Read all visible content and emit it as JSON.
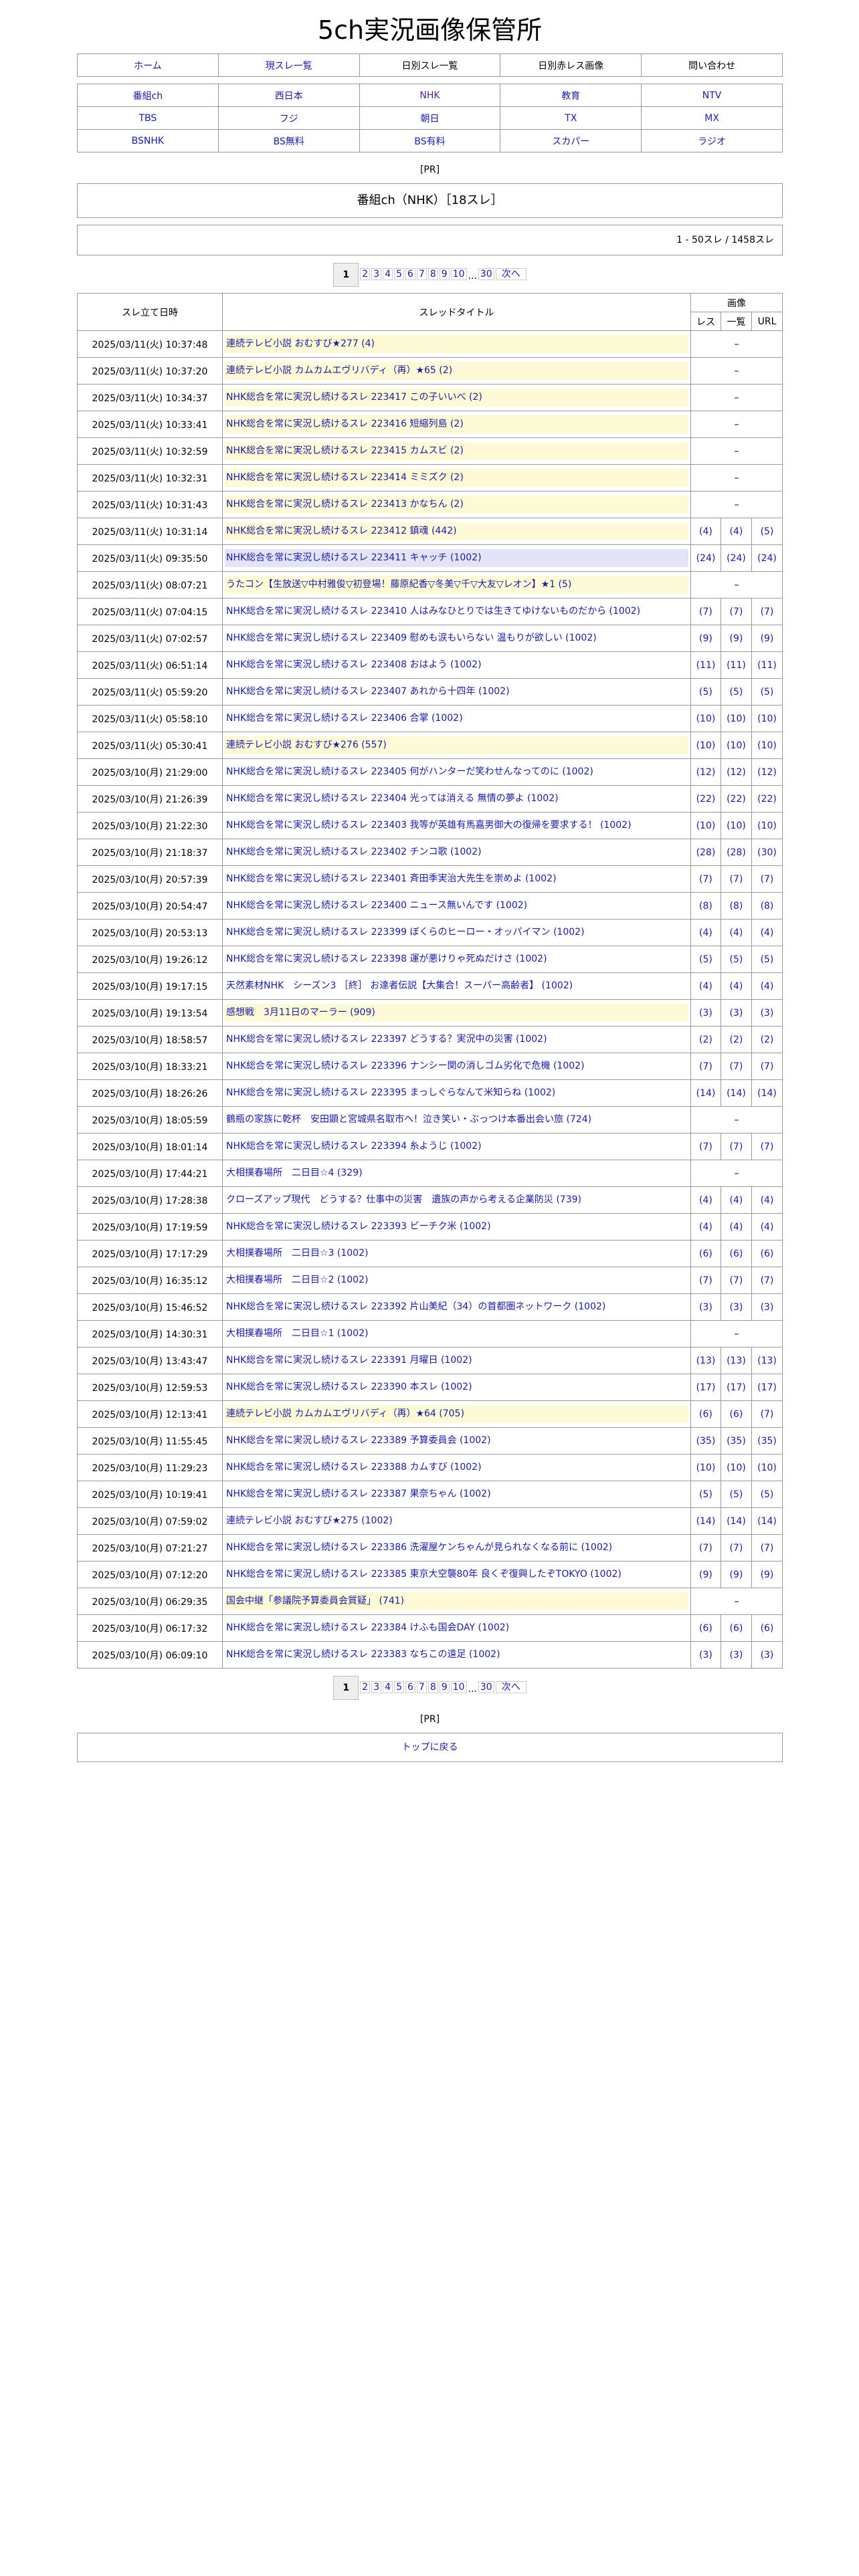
{
  "site_title": "5ch実況画像保管所",
  "nav": [
    {
      "label": "ホーム",
      "link": true
    },
    {
      "label": "現スレ一覧",
      "link": true
    },
    {
      "label": "日別スレ一覧",
      "link": false
    },
    {
      "label": "日別赤レス画像",
      "link": false
    },
    {
      "label": "問い合わせ",
      "link": false
    }
  ],
  "channels": [
    "番組ch",
    "西日本",
    "NHK",
    "教育",
    "NTV",
    "TBS",
    "フジ",
    "朝日",
    "TX",
    "MX",
    "BSNHK",
    "BS無料",
    "BS有料",
    "スカパー",
    "ラジオ"
  ],
  "active_channel": "NHK",
  "pr_label": "[PR]",
  "heading": "番組ch（NHK）［18スレ］",
  "count_text": "1 - 50スレ / 1458スレ",
  "pagination": {
    "current": "1",
    "pages": [
      "1",
      "2",
      "3",
      "4",
      "5",
      "6",
      "7",
      "8",
      "9",
      "10"
    ],
    "ellipsis": "...",
    "last": "30",
    "next": "次へ"
  },
  "table": {
    "headers": {
      "date": "スレ立て日時",
      "title": "スレッドタイトル",
      "images": "画像",
      "res": "レス",
      "list": "一覧",
      "url": "URL"
    },
    "no_images": "–",
    "rows": [
      [
        "2025/03/11(火) 10:37:48",
        "連続テレビ小説 おむすび★277 (4)",
        "yellow",
        null,
        null,
        null
      ],
      [
        "2025/03/11(火) 10:37:20",
        "連続テレビ小説 カムカムエヴリバディ（再）★65 (2)",
        "yellow",
        null,
        null,
        null
      ],
      [
        "2025/03/11(火) 10:34:37",
        "NHK総合を常に実況し続けるスレ 223417 この子いいべ (2)",
        "yellow",
        null,
        null,
        null
      ],
      [
        "2025/03/11(火) 10:33:41",
        "NHK総合を常に実況し続けるスレ 223416 短縮列島 (2)",
        "yellow",
        null,
        null,
        null
      ],
      [
        "2025/03/11(火) 10:32:59",
        "NHK総合を常に実況し続けるスレ 223415 カムスビ (2)",
        "yellow",
        null,
        null,
        null
      ],
      [
        "2025/03/11(火) 10:32:31",
        "NHK総合を常に実況し続けるスレ 223414 ミミズク (2)",
        "yellow",
        null,
        null,
        null
      ],
      [
        "2025/03/11(火) 10:31:43",
        "NHK総合を常に実況し続けるスレ 223413 かなちん (2)",
        "yellow",
        null,
        null,
        null
      ],
      [
        "2025/03/11(火) 10:31:14",
        "NHK総合を常に実況し続けるスレ 223412 鎮魂 (442)",
        "yellow",
        "(4)",
        "(4)",
        "(5)"
      ],
      [
        "2025/03/11(火) 09:35:50",
        "NHK総合を常に実況し続けるスレ 223411 キャッチ (1002)",
        "lavender",
        "(24)",
        "(24)",
        "(24)"
      ],
      [
        "2025/03/11(火) 08:07:21",
        "うたコン【生放送▽中村雅俊▽初登場！藤原紀香▽冬美▽千▽大友▽レオン】★1 (5)",
        "yellow",
        null,
        null,
        null
      ],
      [
        "2025/03/11(火) 07:04:15",
        "NHK総合を常に実況し続けるスレ 223410 人はみなひとりでは生きてゆけないものだから (1002)",
        "",
        "(7)",
        "(7)",
        "(7)"
      ],
      [
        "2025/03/11(火) 07:02:57",
        "NHK総合を常に実況し続けるスレ 223409 慰めも涙もいらない 温もりが欲しい (1002)",
        "",
        "(9)",
        "(9)",
        "(9)"
      ],
      [
        "2025/03/11(火) 06:51:14",
        "NHK総合を常に実況し続けるスレ 223408 おはよう (1002)",
        "",
        "(11)",
        "(11)",
        "(11)"
      ],
      [
        "2025/03/11(火) 05:59:20",
        "NHK総合を常に実況し続けるスレ 223407 あれから十四年 (1002)",
        "",
        "(5)",
        "(5)",
        "(5)"
      ],
      [
        "2025/03/11(火) 05:58:10",
        "NHK総合を常に実況し続けるスレ 223406 合掌 (1002)",
        "",
        "(10)",
        "(10)",
        "(10)"
      ],
      [
        "2025/03/11(火) 05:30:41",
        "連続テレビ小説 おむすび★276 (557)",
        "yellow",
        "(10)",
        "(10)",
        "(10)"
      ],
      [
        "2025/03/10(月) 21:29:00",
        "NHK総合を常に実況し続けるスレ 223405 何がハンターだ笑わせんなってのに (1002)",
        "",
        "(12)",
        "(12)",
        "(12)"
      ],
      [
        "2025/03/10(月) 21:26:39",
        "NHK総合を常に実況し続けるスレ 223404 光っては消える 無情の夢よ (1002)",
        "",
        "(22)",
        "(22)",
        "(22)"
      ],
      [
        "2025/03/10(月) 21:22:30",
        "NHK総合を常に実況し続けるスレ 223403 我等が英雄有馬嘉男御大の復帰を要求する！ (1002)",
        "",
        "(10)",
        "(10)",
        "(10)"
      ],
      [
        "2025/03/10(月) 21:18:37",
        "NHK総合を常に実況し続けるスレ 223402 チンコ歌 (1002)",
        "",
        "(28)",
        "(28)",
        "(30)"
      ],
      [
        "2025/03/10(月) 20:57:39",
        "NHK総合を常に実況し続けるスレ 223401 斉田季実治大先生を崇めよ (1002)",
        "",
        "(7)",
        "(7)",
        "(7)"
      ],
      [
        "2025/03/10(月) 20:54:47",
        "NHK総合を常に実況し続けるスレ 223400 ニュース無いんです (1002)",
        "",
        "(8)",
        "(8)",
        "(8)"
      ],
      [
        "2025/03/10(月) 20:53:13",
        "NHK総合を常に実況し続けるスレ 223399 ぼくらのヒーロー・オッパイマン (1002)",
        "",
        "(4)",
        "(4)",
        "(4)"
      ],
      [
        "2025/03/10(月) 19:26:12",
        "NHK総合を常に実況し続けるスレ 223398 運が悪けりゃ死ぬだけさ (1002)",
        "",
        "(5)",
        "(5)",
        "(5)"
      ],
      [
        "2025/03/10(月) 19:17:15",
        "天然素材NHK　シーズン3 ［終］ お達者伝説【大集合！スーパー高齢者】 (1002)",
        "",
        "(4)",
        "(4)",
        "(4)"
      ],
      [
        "2025/03/10(月) 19:13:54",
        "感想戦　3月11日のマーラー (909)",
        "yellow",
        "(3)",
        "(3)",
        "(3)"
      ],
      [
        "2025/03/10(月) 18:58:57",
        "NHK総合を常に実況し続けるスレ 223397 どうする？実況中の災害 (1002)",
        "",
        "(2)",
        "(2)",
        "(2)"
      ],
      [
        "2025/03/10(月) 18:33:21",
        "NHK総合を常に実況し続けるスレ 223396 ナンシー関の消しゴム劣化で危機 (1002)",
        "",
        "(7)",
        "(7)",
        "(7)"
      ],
      [
        "2025/03/10(月) 18:26:26",
        "NHK総合を常に実況し続けるスレ 223395 まっしぐらなんて米知らね (1002)",
        "",
        "(14)",
        "(14)",
        "(14)"
      ],
      [
        "2025/03/10(月) 18:05:59",
        "鶴瓶の家族に乾杯　安田顕と宮城県名取市へ！泣き笑い・ぶっつけ本番出会い旅 (724)",
        "",
        null,
        null,
        null
      ],
      [
        "2025/03/10(月) 18:01:14",
        "NHK総合を常に実況し続けるスレ 223394 糸ようじ (1002)",
        "",
        "(7)",
        "(7)",
        "(7)"
      ],
      [
        "2025/03/10(月) 17:44:21",
        "大相撲春場所　二日目☆4 (329)",
        "",
        null,
        null,
        null
      ],
      [
        "2025/03/10(月) 17:28:38",
        "クローズアップ現代　どうする？仕事中の災害　遺族の声から考える企業防災 (739)",
        "",
        "(4)",
        "(4)",
        "(4)"
      ],
      [
        "2025/03/10(月) 17:19:59",
        "NHK総合を常に実況し続けるスレ 223393 ビーチク米 (1002)",
        "",
        "(4)",
        "(4)",
        "(4)"
      ],
      [
        "2025/03/10(月) 17:17:29",
        "大相撲春場所　二日目☆3 (1002)",
        "",
        "(6)",
        "(6)",
        "(6)"
      ],
      [
        "2025/03/10(月) 16:35:12",
        "大相撲春場所　二日目☆2 (1002)",
        "",
        "(7)",
        "(7)",
        "(7)"
      ],
      [
        "2025/03/10(月) 15:46:52",
        "NHK総合を常に実況し続けるスレ 223392 片山美紀（34）の首都圏ネットワーク (1002)",
        "",
        "(3)",
        "(3)",
        "(3)"
      ],
      [
        "2025/03/10(月) 14:30:31",
        "大相撲春場所　二日目☆1 (1002)",
        "",
        null,
        null,
        null
      ],
      [
        "2025/03/10(月) 13:43:47",
        "NHK総合を常に実況し続けるスレ 223391 月曜日 (1002)",
        "",
        "(13)",
        "(13)",
        "(13)"
      ],
      [
        "2025/03/10(月) 12:59:53",
        "NHK総合を常に実況し続けるスレ 223390 本スレ (1002)",
        "",
        "(17)",
        "(17)",
        "(17)"
      ],
      [
        "2025/03/10(月) 12:13:41",
        "連続テレビ小説 カムカムエヴリバディ（再）★64 (705)",
        "yellow",
        "(6)",
        "(6)",
        "(7)"
      ],
      [
        "2025/03/10(月) 11:55:45",
        "NHK総合を常に実況し続けるスレ 223389 予算委員会 (1002)",
        "",
        "(35)",
        "(35)",
        "(35)"
      ],
      [
        "2025/03/10(月) 11:29:23",
        "NHK総合を常に実況し続けるスレ 223388 カムすび (1002)",
        "",
        "(10)",
        "(10)",
        "(10)"
      ],
      [
        "2025/03/10(月) 10:19:41",
        "NHK総合を常に実況し続けるスレ 223387 果奈ちゃん (1002)",
        "",
        "(5)",
        "(5)",
        "(5)"
      ],
      [
        "2025/03/10(月) 07:59:02",
        "連続テレビ小説 おむすび★275 (1002)",
        "",
        "(14)",
        "(14)",
        "(14)"
      ],
      [
        "2025/03/10(月) 07:21:27",
        "NHK総合を常に実況し続けるスレ 223386 洗濯屋ケンちゃんが見られなくなる前に (1002)",
        "",
        "(7)",
        "(7)",
        "(7)"
      ],
      [
        "2025/03/10(月) 07:12:20",
        "NHK総合を常に実況し続けるスレ 223385 東京大空襲80年 良くぞ復興したぞTOKYO (1002)",
        "",
        "(9)",
        "(9)",
        "(9)"
      ],
      [
        "2025/03/10(月) 06:29:35",
        "国会中継「参議院予算委員会質疑」 (741)",
        "yellow",
        null,
        null,
        null
      ],
      [
        "2025/03/10(月) 06:17:32",
        "NHK総合を常に実況し続けるスレ 223384 けふも国会DAY (1002)",
        "",
        "(6)",
        "(6)",
        "(6)"
      ],
      [
        "2025/03/10(月) 06:09:10",
        "NHK総合を常に実況し続けるスレ 223383 なちこの遠足 (1002)",
        "",
        "(3)",
        "(3)",
        "(3)"
      ]
    ]
  },
  "footer": {
    "pr_label": "[PR]",
    "back_to_top": "トップに戻る"
  },
  "colors": {
    "link": "#1a1aa6",
    "active_channel": "#551a8b",
    "highlight_yellow": "#fdfbd5",
    "highlight_lavender": "#e4e4f8",
    "border": "#999999"
  }
}
